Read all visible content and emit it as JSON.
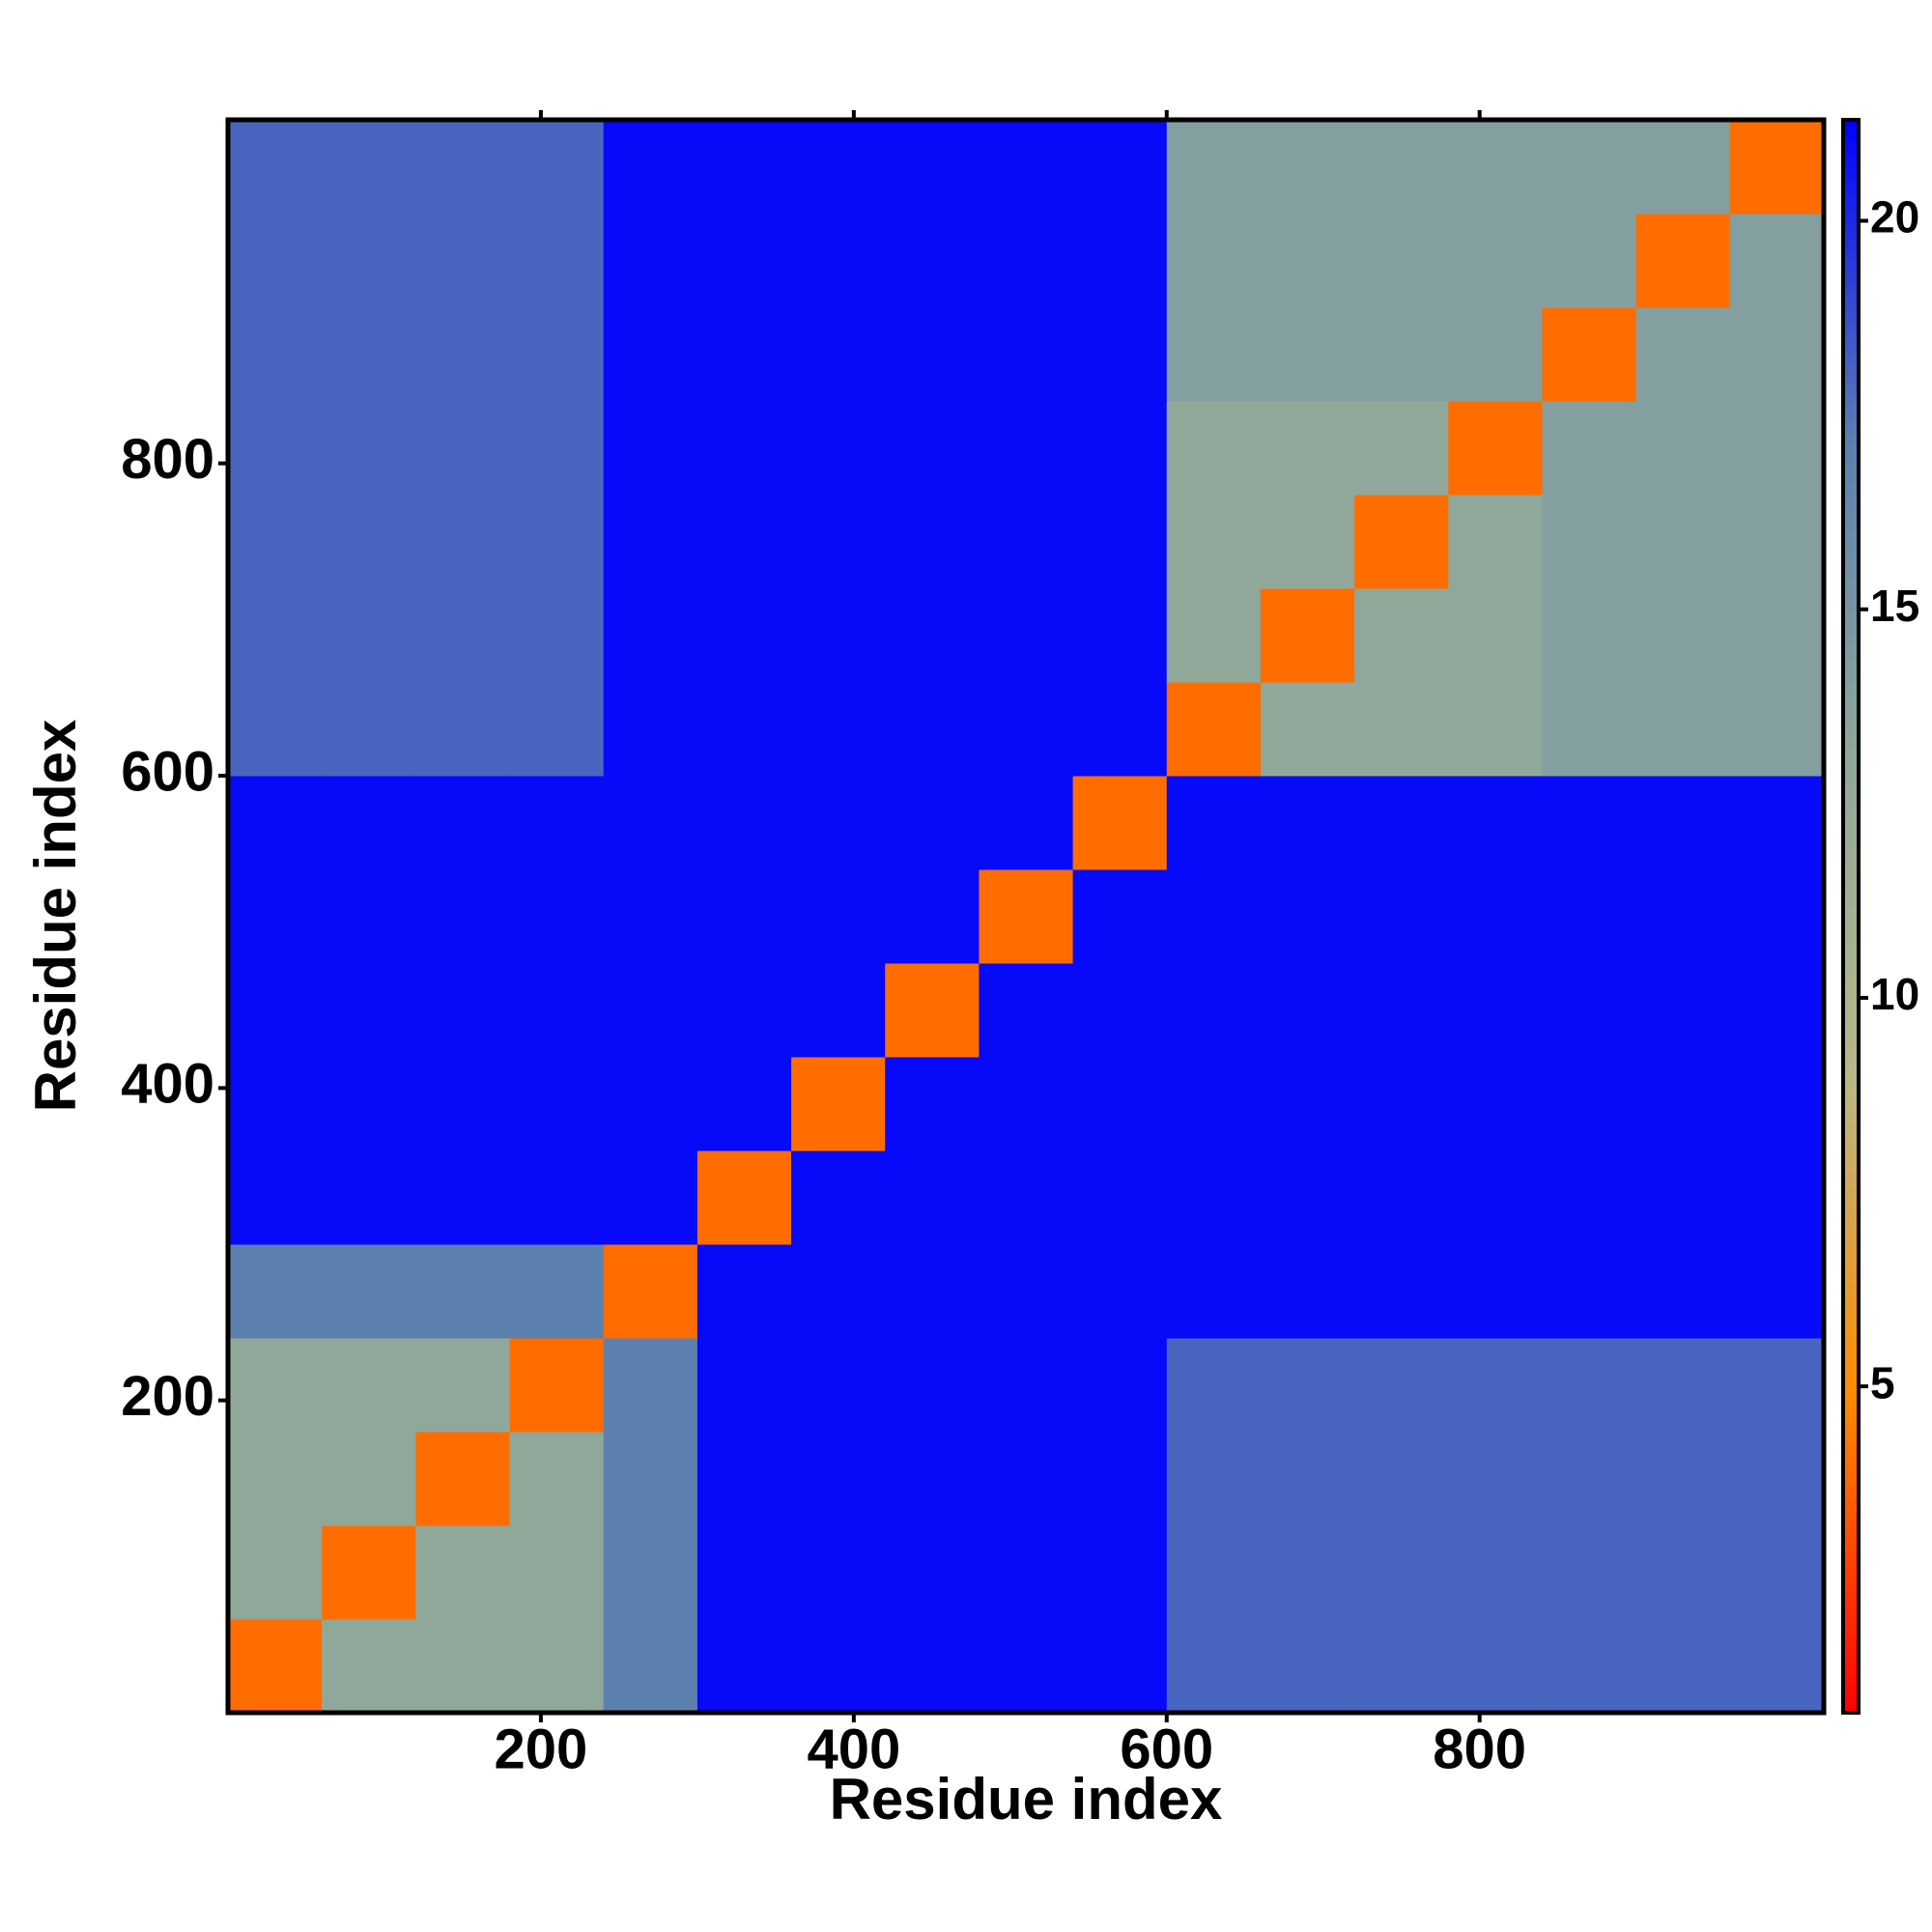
{
  "chart_data": {
    "type": "heatmap",
    "xlabel": "Residue index",
    "ylabel": "Residue index",
    "bins": [
      0,
      60,
      120,
      180,
      240,
      300,
      360,
      420,
      480,
      540,
      600,
      660,
      720,
      780,
      840,
      900,
      960,
      1020
    ],
    "z": [
      [
        4,
        13,
        13,
        13,
        17,
        21,
        21,
        21,
        21,
        21,
        18,
        18,
        18,
        18,
        18,
        18,
        18
      ],
      [
        13,
        4,
        13,
        13,
        17,
        21,
        21,
        21,
        21,
        21,
        18,
        18,
        18,
        18,
        18,
        18,
        18
      ],
      [
        13,
        13,
        4,
        13,
        17,
        21,
        21,
        21,
        21,
        21,
        18,
        18,
        18,
        18,
        18,
        18,
        18
      ],
      [
        13,
        13,
        13,
        4,
        17,
        21,
        21,
        21,
        21,
        21,
        18,
        18,
        18,
        18,
        18,
        18,
        18
      ],
      [
        17,
        17,
        17,
        17,
        4,
        21,
        21,
        21,
        21,
        21,
        21,
        21,
        21,
        21,
        21,
        21,
        21
      ],
      [
        21,
        21,
        21,
        21,
        21,
        4,
        21,
        21,
        21,
        21,
        21,
        21,
        21,
        21,
        21,
        21,
        21
      ],
      [
        21,
        21,
        21,
        21,
        21,
        21,
        4,
        21,
        21,
        21,
        21,
        21,
        21,
        21,
        21,
        21,
        21
      ],
      [
        21,
        21,
        21,
        21,
        21,
        21,
        21,
        4,
        21,
        21,
        21,
        21,
        21,
        21,
        21,
        21,
        21
      ],
      [
        21,
        21,
        21,
        21,
        21,
        21,
        21,
        21,
        4,
        21,
        21,
        21,
        21,
        21,
        21,
        21,
        21
      ],
      [
        21,
        21,
        21,
        21,
        21,
        21,
        21,
        21,
        21,
        4,
        21,
        21,
        21,
        21,
        21,
        21,
        21
      ],
      [
        18,
        18,
        18,
        18,
        21,
        21,
        21,
        21,
        21,
        21,
        4,
        13,
        13,
        13,
        14,
        14,
        14
      ],
      [
        18,
        18,
        18,
        18,
        21,
        21,
        21,
        21,
        21,
        21,
        13,
        4,
        13,
        13,
        14,
        14,
        14
      ],
      [
        18,
        18,
        18,
        18,
        21,
        21,
        21,
        21,
        21,
        21,
        13,
        13,
        4,
        13,
        14,
        14,
        14
      ],
      [
        18,
        18,
        18,
        18,
        21,
        21,
        21,
        21,
        21,
        21,
        13,
        13,
        13,
        4,
        14,
        14,
        14
      ],
      [
        18,
        18,
        18,
        18,
        21,
        21,
        21,
        21,
        21,
        21,
        14,
        14,
        14,
        14,
        4,
        14,
        14
      ],
      [
        18,
        18,
        18,
        18,
        21,
        21,
        21,
        21,
        21,
        21,
        14,
        14,
        14,
        14,
        14,
        4,
        14
      ],
      [
        18,
        18,
        18,
        18,
        21,
        21,
        21,
        21,
        21,
        21,
        14,
        14,
        14,
        14,
        14,
        14,
        4
      ]
    ],
    "xlim": [
      0,
      1020
    ],
    "ylim": [
      0,
      1020
    ],
    "xticks": [
      200,
      400,
      600,
      800
    ],
    "yticks": [
      200,
      400,
      600,
      800
    ],
    "clim": [
      0.8,
      21.3
    ],
    "cticks": [
      5,
      10,
      15,
      20
    ],
    "colorscale": [
      "#ff0000",
      "#ff8c00",
      "#b8b888",
      "#8fa89a",
      "#5a7fb0",
      "#0000ff"
    ]
  }
}
